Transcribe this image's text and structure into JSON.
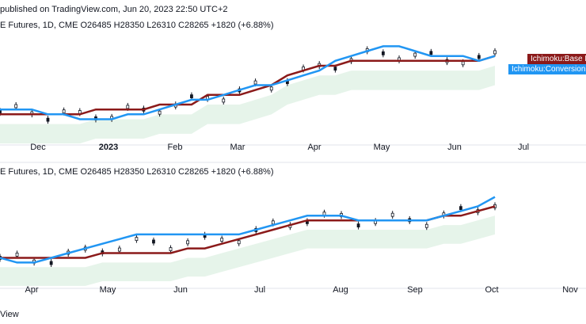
{
  "header": {
    "text": "published on TradingView.com, Jun 20, 2023 22:50 UTC+2"
  },
  "legend_top": "E Futures, 1D, CME  O26485  H28350  L26310  C28265  +1820 (+6.88%)",
  "legend_bottom": "E Futures, 1D, CME  O26485  H28350  L26310  C28265  +1820 (+6.88%)",
  "footer": {
    "text": "View"
  },
  "labels": {
    "base": "Ichimoku:Base Li",
    "conversion": "Ichimoku:Conversion Li"
  },
  "colors": {
    "base_line": "#8b1a1a",
    "conversion_line": "#2196f3",
    "cloud_bull": "#e6f4ea",
    "cloud_bear": "#fbe3e3",
    "candle": "#131722"
  },
  "chart_data": [
    {
      "type": "line",
      "name": "top-panel",
      "x_ticks": [
        "Dec",
        "2023",
        "Feb",
        "Mar",
        "Apr",
        "May",
        "Jun",
        "Jul"
      ],
      "series": [
        {
          "name": "Ichimoku:Base Line",
          "values": [
            13,
            13,
            13,
            13,
            13,
            13,
            14,
            14,
            14,
            14,
            15,
            15,
            15,
            17,
            17,
            17,
            18,
            19,
            21,
            22,
            23,
            23,
            24,
            24,
            24,
            24,
            24,
            24,
            24,
            24,
            24,
            25
          ]
        },
        {
          "name": "Ichimoku:Conversion Line",
          "values": [
            14,
            14,
            14,
            13,
            13,
            12,
            12,
            12,
            13,
            13,
            14,
            15,
            16,
            16,
            17,
            18,
            19,
            19,
            20,
            21,
            22,
            24,
            25,
            26,
            27,
            27,
            26,
            25,
            25,
            25,
            24,
            25
          ]
        }
      ]
    },
    {
      "type": "line",
      "name": "bottom-panel",
      "x_ticks": [
        "Apr",
        "May",
        "Jun",
        "Jul",
        "Aug",
        "Sep",
        "Oct",
        "Nov"
      ],
      "series": [
        {
          "name": "Ichimoku:Base Line",
          "values": [
            13,
            13,
            13,
            13,
            13,
            13,
            14,
            14,
            14,
            14,
            14,
            15,
            15,
            16,
            17,
            18,
            19,
            20,
            21,
            21,
            21,
            21,
            21,
            21,
            21,
            21,
            22,
            22,
            23,
            24
          ]
        },
        {
          "name": "Ichimoku:Conversion Line",
          "values": [
            13,
            12,
            12,
            13,
            14,
            15,
            16,
            17,
            18,
            18,
            18,
            18,
            18,
            18,
            18,
            19,
            20,
            21,
            22,
            22,
            22,
            21,
            21,
            21,
            21,
            21,
            22,
            23,
            24,
            26
          ]
        }
      ]
    }
  ]
}
